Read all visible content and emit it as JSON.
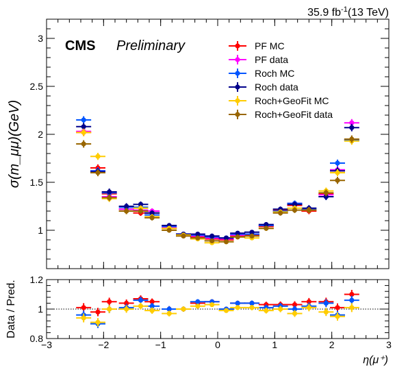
{
  "lumi_label": "35.9 fb",
  "lumi_sup": "-1",
  "lumi_energy": "(13 TeV)",
  "cms_label": "CMS",
  "prelim_label": "Preliminary",
  "chart_data": [
    {
      "type": "scatter",
      "panel": "main",
      "ylabel": "σ(m_μμ)(GeV)",
      "xlim": [
        -3,
        3
      ],
      "ylim": [
        0.6,
        3.2
      ],
      "xticks": [
        "−3",
        "−2",
        "−1",
        "0",
        "1",
        "2",
        "3"
      ],
      "yticks": [
        "1",
        "1.5",
        "2",
        "2.5",
        "3"
      ],
      "ytick_values": [
        1,
        1.5,
        2,
        2.5,
        3
      ],
      "legend_position": "top-right",
      "x": [
        -2.35,
        -2.1,
        -1.9,
        -1.6,
        -1.35,
        -1.15,
        -0.85,
        -0.6,
        -0.35,
        -0.1,
        0.15,
        0.35,
        0.6,
        0.85,
        1.1,
        1.35,
        1.6,
        1.9,
        2.1,
        2.35
      ],
      "series": [
        {
          "name": "PF MC",
          "color": "#ff0000",
          "marker": "circle",
          "values": [
            2.02,
            1.65,
            1.38,
            1.22,
            1.18,
            1.18,
            1.02,
            0.95,
            0.93,
            0.91,
            0.9,
            0.94,
            0.95,
            1.04,
            1.21,
            1.26,
            1.2,
            1.38,
            1.62,
            1.94
          ]
        },
        {
          "name": "PF data",
          "color": "#ff00ff",
          "marker": "circle",
          "values": [
            2.03,
            1.62,
            1.35,
            1.22,
            1.21,
            1.2,
            1.03,
            0.96,
            0.94,
            0.92,
            0.91,
            0.95,
            0.96,
            1.05,
            1.2,
            1.28,
            1.21,
            1.37,
            1.63,
            2.12
          ]
        },
        {
          "name": "Roch MC",
          "color": "#0055ff",
          "marker": "circle",
          "values": [
            2.15,
            1.62,
            1.39,
            1.24,
            1.24,
            1.16,
            1.04,
            0.96,
            0.95,
            0.93,
            0.92,
            0.96,
            0.96,
            1.05,
            1.2,
            1.28,
            1.22,
            1.35,
            1.7,
            1.94
          ]
        },
        {
          "name": "Roch data",
          "color": "#00008b",
          "marker": "circle",
          "values": [
            2.08,
            1.61,
            1.4,
            1.25,
            1.27,
            1.18,
            1.05,
            0.96,
            0.96,
            0.94,
            0.92,
            0.97,
            0.98,
            1.06,
            1.22,
            1.27,
            1.23,
            1.35,
            1.62,
            2.07
          ]
        },
        {
          "name": "Roch+GeoFit MC",
          "color": "#ffcc00",
          "marker": "circle",
          "values": [
            2.02,
            1.77,
            1.33,
            1.2,
            1.23,
            1.14,
            1.02,
            0.95,
            0.91,
            0.87,
            0.88,
            0.93,
            0.92,
            1.02,
            1.19,
            1.23,
            1.21,
            1.41,
            1.6,
            1.93
          ]
        },
        {
          "name": "Roch+GeoFit data",
          "color": "#996600",
          "marker": "circle",
          "values": [
            1.9,
            1.6,
            1.34,
            1.2,
            1.2,
            1.13,
            1.0,
            0.94,
            0.92,
            0.89,
            0.88,
            0.93,
            0.94,
            1.02,
            1.18,
            1.21,
            1.21,
            1.39,
            1.52,
            1.95
          ]
        }
      ]
    },
    {
      "type": "scatter",
      "panel": "ratio",
      "xlabel": "η(μ⁺)",
      "ylabel": "Data / Pred.",
      "xlim": [
        -3,
        3
      ],
      "ylim": [
        0.8,
        1.2
      ],
      "xticks": [
        "−3",
        "−2",
        "−1",
        "0",
        "1",
        "2",
        "3"
      ],
      "yticks": [
        "0.8",
        "1",
        "1.2"
      ],
      "ytick_values": [
        0.8,
        1.0,
        1.2
      ],
      "reference_line": 1.0,
      "x": [
        -2.35,
        -2.1,
        -1.9,
        -1.6,
        -1.35,
        -1.15,
        -0.85,
        -0.6,
        -0.35,
        -0.1,
        0.15,
        0.35,
        0.6,
        0.85,
        1.1,
        1.35,
        1.6,
        1.9,
        2.1,
        2.35
      ],
      "series": [
        {
          "name": "PF data",
          "color": "#ff0000",
          "marker": "circle",
          "values": [
            1.01,
            0.98,
            1.05,
            1.04,
            1.07,
            1.05,
            1.0,
            1.0,
            1.04,
            1.05,
            1.0,
            1.04,
            1.04,
            1.03,
            1.03,
            1.03,
            1.05,
            1.05,
            1.01,
            1.1
          ]
        },
        {
          "name": "Roch data",
          "color": "#0055ff",
          "marker": "circle",
          "values": [
            0.96,
            0.9,
            1.0,
            1.01,
            1.06,
            1.02,
            1.0,
            1.0,
            1.05,
            1.05,
            1.0,
            1.04,
            1.04,
            1.01,
            1.02,
            1.0,
            1.02,
            1.04,
            0.96,
            1.06
          ]
        },
        {
          "name": "Roch+GeoFit data",
          "color": "#ffcc00",
          "marker": "circle",
          "values": [
            0.94,
            0.91,
            1.0,
            1.0,
            1.02,
            0.99,
            0.97,
            1.0,
            1.02,
            1.03,
            0.99,
            1.01,
            1.01,
            0.99,
            1.0,
            0.97,
            1.01,
            0.98,
            0.95,
            1.01
          ]
        }
      ]
    }
  ]
}
